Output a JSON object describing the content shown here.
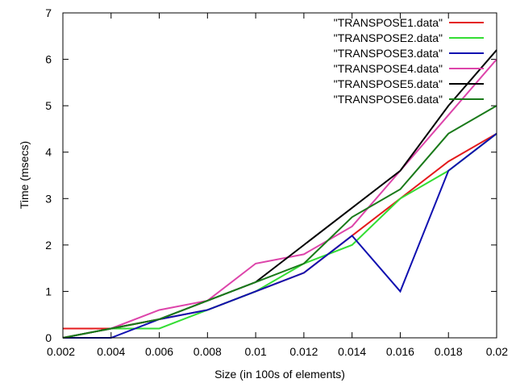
{
  "chart_data": {
    "type": "line",
    "title": "",
    "xlabel": "Size (in 100s of elements)",
    "ylabel": "Time (msecs)",
    "xlim": [
      0.002,
      0.02
    ],
    "ylim": [
      0,
      7
    ],
    "grid": false,
    "legend_position": "top-right",
    "x_ticks": [
      0.002,
      0.004,
      0.006,
      0.008,
      0.01,
      0.012,
      0.014,
      0.016,
      0.018,
      0.02
    ],
    "x_tick_labels": [
      "0.002",
      "0.004",
      "0.006",
      "0.008",
      "0.01",
      "0.012",
      "0.014",
      "0.016",
      "0.018",
      "0.02"
    ],
    "y_ticks": [
      0,
      1,
      2,
      3,
      4,
      5,
      6,
      7
    ],
    "y_tick_labels": [
      "0",
      "1",
      "2",
      "3",
      "4",
      "5",
      "6",
      "7"
    ],
    "series": [
      {
        "name": "\"TRANSPOSE1.data\"",
        "color": "#e41a1c",
        "x": [
          0.002,
          0.004,
          0.006,
          0.008,
          0.01,
          0.012,
          0.014,
          0.016,
          0.018,
          0.02
        ],
        "values": [
          0.2,
          0.2,
          0.4,
          0.6,
          1.0,
          1.4,
          2.2,
          3.0,
          3.8,
          4.4
        ]
      },
      {
        "name": "\"TRANSPOSE2.data\"",
        "color": "#33dd33",
        "x": [
          0.002,
          0.004,
          0.006,
          0.008,
          0.01,
          0.012,
          0.014,
          0.016,
          0.018,
          0.02
        ],
        "values": [
          0.0,
          0.2,
          0.2,
          0.6,
          1.0,
          1.6,
          2.0,
          3.0,
          3.6,
          4.4
        ]
      },
      {
        "name": "\"TRANSPOSE3.data\"",
        "color": "#1010b0",
        "x": [
          0.002,
          0.004,
          0.006,
          0.008,
          0.01,
          0.012,
          0.014,
          0.016,
          0.018,
          0.02
        ],
        "values": [
          0.0,
          0.0,
          0.4,
          0.6,
          1.0,
          1.4,
          2.2,
          1.0,
          3.6,
          4.4
        ]
      },
      {
        "name": "\"TRANSPOSE4.data\"",
        "color": "#dd44aa",
        "x": [
          0.002,
          0.004,
          0.006,
          0.008,
          0.01,
          0.012,
          0.014,
          0.016,
          0.018,
          0.02
        ],
        "values": [
          0.0,
          0.2,
          0.6,
          0.8,
          1.6,
          1.8,
          2.4,
          3.6,
          4.8,
          6.0
        ]
      },
      {
        "name": "\"TRANSPOSE5.data\"",
        "color": "#000000",
        "x": [
          0.002,
          0.004,
          0.006,
          0.008,
          0.01,
          0.012,
          0.014,
          0.016,
          0.018,
          0.02
        ],
        "values": [
          0.0,
          0.2,
          0.4,
          0.8,
          1.2,
          2.0,
          2.8,
          3.6,
          5.0,
          6.2
        ]
      },
      {
        "name": "\"TRANSPOSE6.data\"",
        "color": "#1a7a1a",
        "x": [
          0.002,
          0.004,
          0.006,
          0.008,
          0.01,
          0.012,
          0.014,
          0.016,
          0.018,
          0.02
        ],
        "values": [
          0.0,
          0.2,
          0.4,
          0.8,
          1.2,
          1.6,
          2.6,
          3.2,
          4.4,
          5.0
        ]
      }
    ]
  }
}
